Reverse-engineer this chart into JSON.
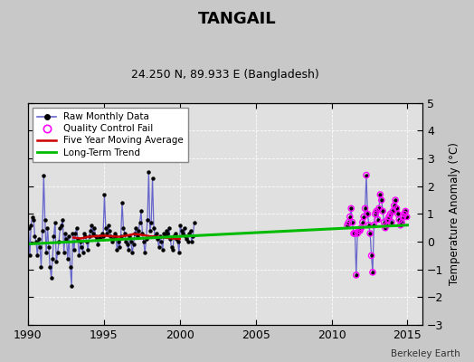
{
  "title": "TANGAIL",
  "subtitle": "24.250 N, 89.933 E (Bangladesh)",
  "ylabel": "Temperature Anomaly (°C)",
  "credit": "Berkeley Earth",
  "xlim": [
    1990,
    2016
  ],
  "ylim": [
    -3,
    5
  ],
  "yticks": [
    -3,
    -2,
    -1,
    0,
    1,
    2,
    3,
    4,
    5
  ],
  "xticks": [
    1990,
    1995,
    2000,
    2005,
    2010,
    2015
  ],
  "bg_color": "#e0e0e0",
  "raw_color": "#6666cc",
  "raw_dot_color": "#000000",
  "ma_color": "#cc0000",
  "trend_color": "#00bb00",
  "qc_color": "#ff00ff",
  "raw_monthly_x": [
    1990.042,
    1990.125,
    1990.208,
    1990.292,
    1990.375,
    1990.458,
    1990.542,
    1990.625,
    1990.708,
    1990.792,
    1990.875,
    1990.958,
    1991.042,
    1991.125,
    1991.208,
    1991.292,
    1991.375,
    1991.458,
    1991.542,
    1991.625,
    1991.708,
    1991.792,
    1991.875,
    1991.958,
    1992.042,
    1992.125,
    1992.208,
    1992.292,
    1992.375,
    1992.458,
    1992.542,
    1992.625,
    1992.708,
    1992.792,
    1992.875,
    1992.958,
    1993.042,
    1993.125,
    1993.208,
    1993.292,
    1993.375,
    1993.458,
    1993.542,
    1993.625,
    1993.708,
    1993.792,
    1993.875,
    1993.958,
    1994.042,
    1994.125,
    1994.208,
    1994.292,
    1994.375,
    1994.458,
    1994.542,
    1994.625,
    1994.708,
    1994.792,
    1994.875,
    1994.958,
    1995.042,
    1995.125,
    1995.208,
    1995.292,
    1995.375,
    1995.458,
    1995.542,
    1995.625,
    1995.708,
    1995.792,
    1995.875,
    1995.958,
    1996.042,
    1996.125,
    1996.208,
    1996.292,
    1996.375,
    1996.458,
    1996.542,
    1996.625,
    1996.708,
    1996.792,
    1996.875,
    1996.958,
    1997.042,
    1997.125,
    1997.208,
    1997.292,
    1997.375,
    1997.458,
    1997.542,
    1997.625,
    1997.708,
    1997.792,
    1997.875,
    1997.958,
    1998.042,
    1998.125,
    1998.208,
    1998.292,
    1998.375,
    1998.458,
    1998.542,
    1998.625,
    1998.708,
    1998.792,
    1998.875,
    1998.958,
    1999.042,
    1999.125,
    1999.208,
    1999.292,
    1999.375,
    1999.458,
    1999.542,
    1999.625,
    1999.708,
    1999.792,
    1999.875,
    1999.958,
    2000.042,
    2000.125,
    2000.208,
    2000.292,
    2000.375,
    2000.458,
    2000.542,
    2000.625,
    2000.708,
    2000.792,
    2000.875,
    2000.958,
    2011.042,
    2011.125,
    2011.208,
    2011.292,
    2011.375,
    2011.458,
    2011.542,
    2011.625,
    2011.708,
    2011.792,
    2011.875,
    2011.958,
    2012.042,
    2012.125,
    2012.208,
    2012.292,
    2012.375,
    2012.458,
    2012.542,
    2012.625,
    2012.708,
    2012.792,
    2012.875,
    2012.958,
    2013.042,
    2013.125,
    2013.208,
    2013.292,
    2013.375,
    2013.458,
    2013.542,
    2013.625,
    2013.708,
    2013.792,
    2013.875,
    2013.958,
    2014.042,
    2014.125,
    2014.208,
    2014.292,
    2014.375,
    2014.458,
    2014.542,
    2014.625,
    2014.708,
    2014.792,
    2014.875,
    2014.958
  ],
  "raw_monthly_y": [
    0.5,
    -0.5,
    0.6,
    0.9,
    0.8,
    0.2,
    0.0,
    -0.5,
    0.1,
    -0.2,
    -0.9,
    0.4,
    2.4,
    0.8,
    -0.4,
    0.5,
    -0.2,
    -0.9,
    -1.3,
    -0.6,
    0.2,
    0.7,
    -0.7,
    -0.4,
    0.0,
    0.5,
    0.6,
    0.8,
    -0.4,
    0.3,
    0.1,
    -0.6,
    0.2,
    -0.9,
    -1.6,
    0.3,
    -0.3,
    0.3,
    0.5,
    0.1,
    -0.5,
    0.0,
    -0.2,
    -0.4,
    0.3,
    0.2,
    0.0,
    -0.3,
    0.2,
    0.4,
    0.6,
    0.3,
    0.5,
    0.2,
    0.1,
    -0.1,
    0.2,
    0.1,
    0.3,
    0.2,
    1.7,
    0.5,
    0.3,
    0.6,
    0.4,
    0.2,
    0.0,
    0.1,
    0.3,
    0.2,
    -0.3,
    0.0,
    -0.2,
    0.2,
    1.4,
    0.5,
    0.3,
    0.0,
    -0.1,
    -0.3,
    0.2,
    0.0,
    -0.4,
    -0.1,
    0.3,
    0.5,
    0.2,
    0.4,
    0.7,
    1.1,
    0.3,
    0.0,
    -0.4,
    0.1,
    0.8,
    2.5,
    0.4,
    0.7,
    2.3,
    0.5,
    0.2,
    0.3,
    0.1,
    -0.2,
    0.2,
    0.0,
    -0.3,
    0.3,
    0.2,
    0.4,
    0.3,
    0.5,
    0.1,
    -0.2,
    -0.3,
    0.2,
    0.3,
    0.1,
    0.0,
    -0.4,
    0.6,
    0.4,
    0.3,
    0.5,
    0.2,
    0.1,
    0.0,
    0.3,
    0.4,
    0.0,
    0.2,
    0.7,
    0.6,
    0.7,
    0.9,
    1.2,
    0.7,
    0.3,
    0.3,
    -1.2,
    0.3,
    0.4,
    0.4,
    0.5,
    0.7,
    0.9,
    1.2,
    2.4,
    1.0,
    0.6,
    0.3,
    -0.5,
    -1.1,
    0.6,
    1.0,
    1.1,
    0.8,
    1.2,
    1.7,
    1.5,
    1.1,
    0.7,
    0.5,
    0.6,
    0.8,
    0.9,
    1.0,
    0.7,
    1.1,
    1.3,
    1.5,
    1.2,
    1.0,
    0.8,
    0.6,
    0.7,
    0.9,
    1.0,
    1.1,
    0.9
  ],
  "qc_fail_x": [
    2011.042,
    2011.125,
    2011.208,
    2011.292,
    2011.375,
    2011.458,
    2011.542,
    2011.625,
    2011.708,
    2011.792,
    2011.875,
    2011.958,
    2012.042,
    2012.125,
    2012.208,
    2012.292,
    2012.375,
    2012.458,
    2012.542,
    2012.625,
    2012.708,
    2012.792,
    2012.875,
    2012.958,
    2013.042,
    2013.125,
    2013.208,
    2013.292,
    2013.375,
    2013.458,
    2013.542,
    2013.625,
    2013.708,
    2013.792,
    2013.875,
    2013.958,
    2014.042,
    2014.125,
    2014.208,
    2014.292,
    2014.375,
    2014.458,
    2014.542,
    2014.625,
    2014.708,
    2014.792,
    2014.875,
    2014.958
  ],
  "qc_fail_y": [
    0.6,
    0.7,
    0.9,
    1.2,
    0.7,
    0.3,
    0.3,
    -1.2,
    0.3,
    0.4,
    0.4,
    0.5,
    0.7,
    0.9,
    1.2,
    2.4,
    1.0,
    0.6,
    0.3,
    -0.5,
    -1.1,
    0.6,
    1.0,
    1.1,
    0.8,
    1.2,
    1.7,
    1.5,
    1.1,
    0.7,
    0.5,
    0.6,
    0.8,
    0.9,
    1.0,
    0.7,
    1.1,
    1.3,
    1.5,
    1.2,
    1.0,
    0.8,
    0.6,
    0.7,
    0.9,
    1.0,
    1.1,
    0.9
  ],
  "ma_x": [
    1993.0,
    1993.5,
    1994.0,
    1994.5,
    1995.0,
    1995.5,
    1996.0,
    1996.5,
    1997.0,
    1997.5,
    1998.0,
    1998.5,
    1999.0,
    1999.5,
    2000.0
  ],
  "ma_y": [
    0.15,
    0.12,
    0.18,
    0.2,
    0.22,
    0.2,
    0.18,
    0.22,
    0.28,
    0.25,
    0.2,
    0.18,
    0.15,
    0.12,
    0.1
  ],
  "trend_x": [
    1990.0,
    2015.0
  ],
  "trend_y": [
    -0.08,
    0.6
  ],
  "fig_width": 5.24,
  "fig_height": 4.0,
  "dpi": 100
}
